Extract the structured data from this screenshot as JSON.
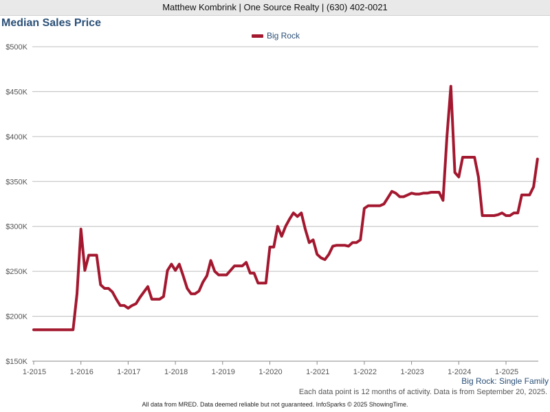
{
  "header": {
    "text": "Matthew Kombrink | One Source Realty | (630) 402-0021"
  },
  "chart_data": {
    "type": "line",
    "title": "Median Sales Price",
    "legend": [
      "Big Rock"
    ],
    "legend_position": "top-center",
    "xlabel": "",
    "ylabel": "",
    "x_ticks": [
      "1-2015",
      "1-2016",
      "1-2017",
      "1-2018",
      "1-2019",
      "1-2020",
      "1-2021",
      "1-2022",
      "1-2023",
      "1-2024",
      "1-2025"
    ],
    "y_ticks": [
      "$150K",
      "$200K",
      "$250K",
      "$300K",
      "$350K",
      "$400K",
      "$450K",
      "$500K"
    ],
    "ylim": [
      150000,
      500000
    ],
    "x_start": "1-2015",
    "x_interval": "monthly",
    "grid": true,
    "series": [
      {
        "name": "Big Rock",
        "color": "#a3182f",
        "values": [
          185000,
          185000,
          185000,
          185000,
          185000,
          185000,
          185000,
          185000,
          185000,
          185000,
          185000,
          225000,
          297000,
          251000,
          268000,
          268000,
          268000,
          235000,
          231000,
          231000,
          227000,
          219000,
          212000,
          212000,
          209000,
          212000,
          214000,
          221000,
          227000,
          233000,
          219000,
          219000,
          219000,
          222000,
          251000,
          258000,
          251000,
          258000,
          245000,
          231000,
          225000,
          225000,
          228000,
          238000,
          245000,
          262000,
          250000,
          246000,
          246000,
          246000,
          251000,
          256000,
          256000,
          256000,
          260000,
          248000,
          248000,
          237000,
          237000,
          237000,
          277000,
          277000,
          300000,
          289000,
          300000,
          308000,
          315000,
          311000,
          315000,
          297000,
          282000,
          285000,
          269000,
          265000,
          263000,
          269000,
          278000,
          279000,
          279000,
          279000,
          278000,
          282000,
          282000,
          285000,
          320000,
          323000,
          323000,
          323000,
          323000,
          325000,
          332000,
          339000,
          337000,
          333000,
          333000,
          335000,
          337000,
          336000,
          336000,
          337000,
          337000,
          338000,
          338000,
          338000,
          329000,
          400000,
          456000,
          360000,
          355000,
          377000,
          377000,
          377000,
          377000,
          355000,
          312000,
          312000,
          312000,
          312000,
          313000,
          315000,
          312000,
          312000,
          315000,
          315000,
          335000,
          335000,
          335000,
          344000,
          375000
        ]
      }
    ]
  },
  "region_label": "Big Rock: Single Family",
  "footnote": "Each data point is 12 months of activity. Data is from September 20, 2025.",
  "footer": "All data from MRED. Data deemed reliable but not guaranteed. InfoSparks © 2025 ShowingTime."
}
